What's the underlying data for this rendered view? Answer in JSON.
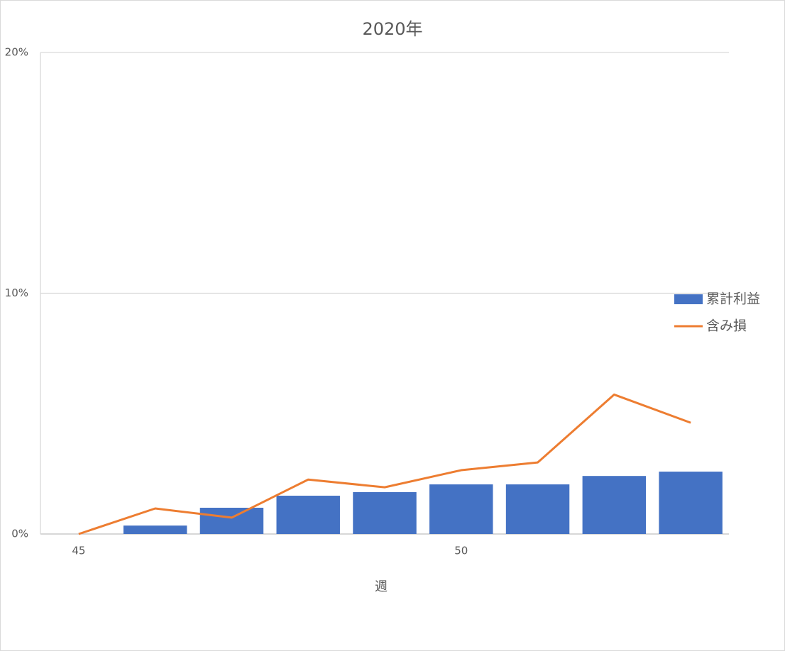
{
  "chart_data": {
    "type": "bar-line",
    "title": "2020年",
    "x_label": "週",
    "categories": [
      "45",
      null,
      null,
      null,
      null,
      "50",
      null,
      null,
      null
    ],
    "series": [
      {
        "name": "累計利益",
        "type": "bar",
        "color": "#4472c4",
        "values": [
          0,
          0.35,
          1.09,
          1.59,
          1.74,
          2.06,
          2.06,
          2.41,
          2.59
        ]
      },
      {
        "name": "含み損",
        "type": "line",
        "color": "#ed7d31",
        "values": [
          0,
          1.06,
          0.68,
          2.26,
          1.94,
          2.65,
          2.97,
          5.79,
          4.62
        ]
      }
    ],
    "ylim": [
      0,
      20
    ],
    "yticks": [
      {
        "value": 0,
        "label": "0%"
      },
      {
        "value": 10,
        "label": "10%"
      },
      {
        "value": 20,
        "label": "20%"
      }
    ],
    "grid": true,
    "legend": "right"
  }
}
